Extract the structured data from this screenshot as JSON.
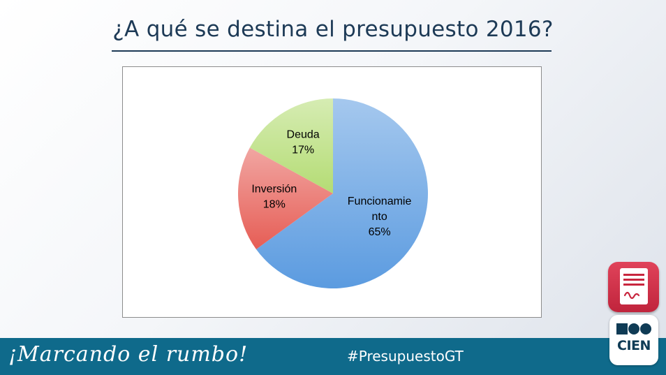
{
  "slide": {
    "title": "¿A qué se destina el presupuesto 2016?",
    "footer_slogan": "¡Marcando el rumbo!",
    "hashtag": "#PresupuestoGT",
    "logo_text": "CIEN"
  },
  "colors": {
    "title": "#1d3a56",
    "footer_bar": "#0f6a8b",
    "doc_badge": "#d23249"
  },
  "icons": {
    "doc_badge": "document-icon",
    "logo": "cien-logo-icon"
  },
  "chart_data": {
    "type": "pie",
    "title": "",
    "start_angle_deg": 0,
    "direction": "clockwise",
    "legend": "none",
    "slices": [
      {
        "name": "Funcionamiento",
        "label_lines": [
          "Funcionamie",
          "nto"
        ],
        "value": 65,
        "value_label": "65%",
        "color": "#5b9be0"
      },
      {
        "name": "Inversión",
        "label_lines": [
          "Inversión"
        ],
        "value": 18,
        "value_label": "18%",
        "color": "#e65d55"
      },
      {
        "name": "Deuda",
        "label_lines": [
          "Deuda"
        ],
        "value": 17,
        "value_label": "17%",
        "color": "#b4dc74"
      }
    ]
  }
}
